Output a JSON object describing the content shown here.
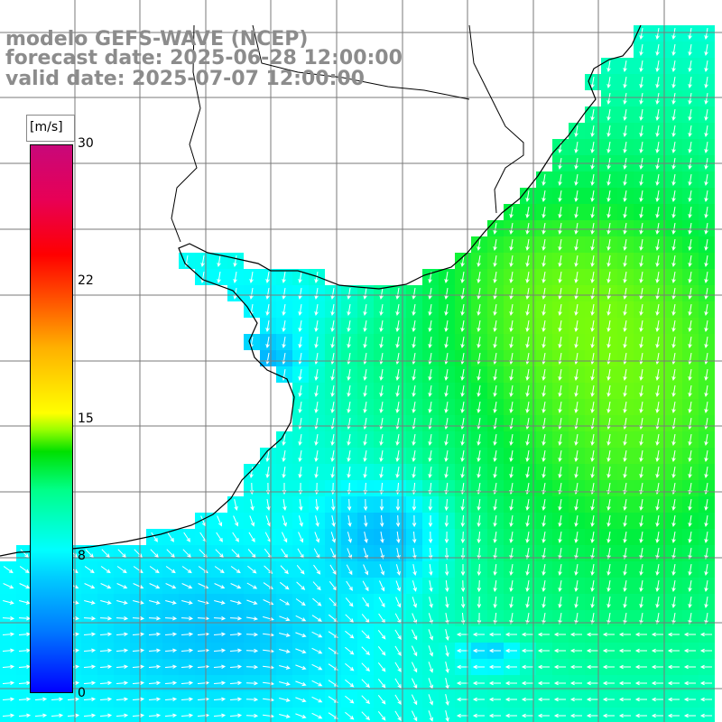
{
  "title": {
    "line1": "modelo GEFS-WAVE (NCEP)",
    "line2": "forecast date: 2025-06-28 12:00:00",
    "line3": "valid date: 2025-07-07 12:00:00"
  },
  "colorbar": {
    "unit": "[m/s]",
    "ticks": [
      "30",
      "22",
      "15",
      "8",
      "0"
    ],
    "colors": [
      "#0000ff",
      "#0077ff",
      "#00ccff",
      "#00ffff",
      "#00ff88",
      "#00e000",
      "#ffff00",
      "#ff5a00",
      "#ff0000",
      "#c8087a"
    ]
  },
  "map": {
    "variable": "wind speed and direction",
    "land_color": "#ffffff",
    "grid_color": "#7a7a7a",
    "coast_color": "#000000",
    "arrow_color": "#ffffff"
  }
}
